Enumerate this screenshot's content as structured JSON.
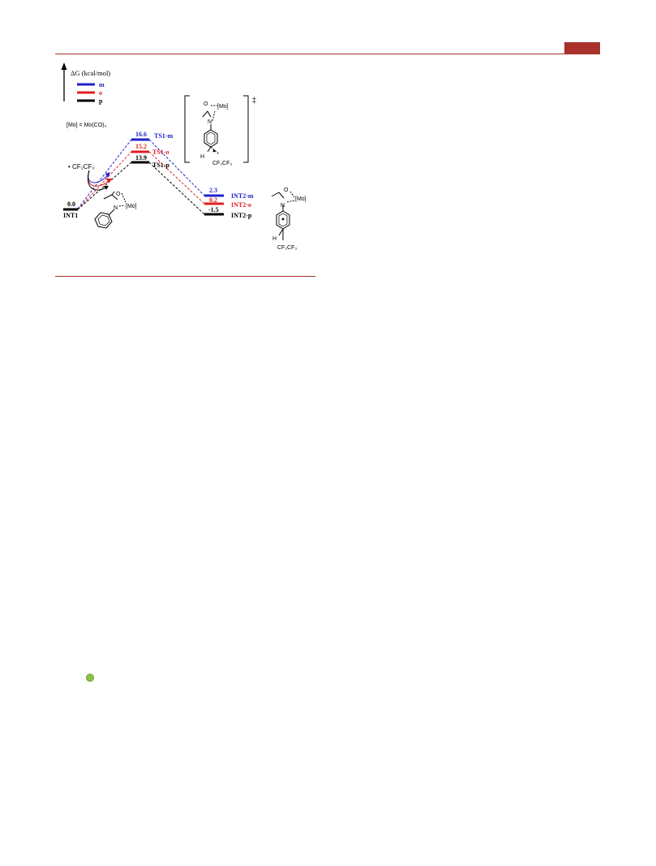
{
  "axis_label": "ΔG (kcal/mol)",
  "legend": [
    {
      "label": "m",
      "color": "#1f1fcc"
    },
    {
      "label": "o",
      "color": "#e01f1f"
    },
    {
      "label": "p",
      "color": "#000000"
    }
  ],
  "mo_definition": "[Mo] = Mo(CO)₄",
  "radical": "• CF₂CF₃",
  "levels": {
    "int1": {
      "label": "INT1",
      "value": "0.0"
    },
    "ts1_m": {
      "label": "TS1-m",
      "value": "16.6"
    },
    "ts1_o": {
      "label": "TS1-o",
      "value": "15.2"
    },
    "ts1_p": {
      "label": "TS1-p",
      "value": "13.9"
    },
    "int2_m": {
      "label": "INT2-m",
      "value": "2.3"
    },
    "int2_o": {
      "label": "INT2-o",
      "value": "0.2"
    },
    "int2_p": {
      "label": "INT2-p",
      "value": "-1.5"
    }
  },
  "structures": {
    "ts_bracket_symbol": "‡",
    "o_label": "O",
    "n_label": "N",
    "mo_label": "[Mo]",
    "h_label": "H",
    "cf2cf3_label": "CF₂CF₃"
  },
  "colors": {
    "accent": "#a8312b",
    "blue": "#1f1fcc",
    "red": "#e01f1f",
    "black": "#000000"
  }
}
